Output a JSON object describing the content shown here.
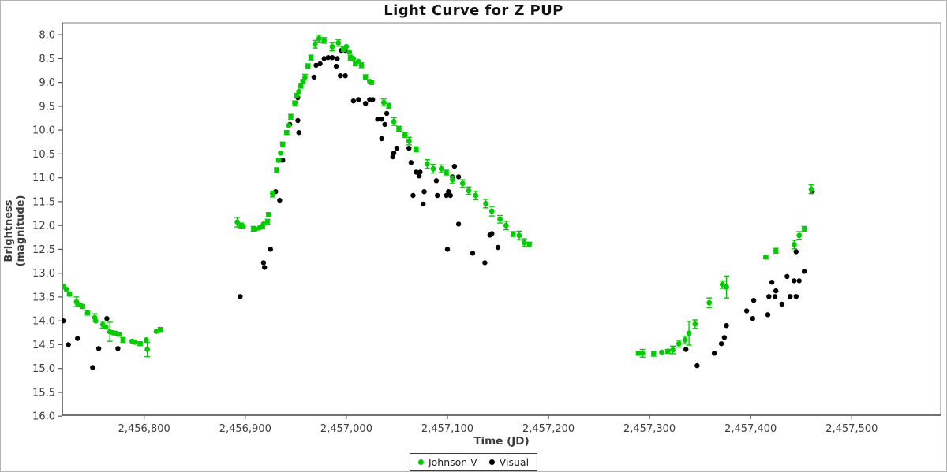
{
  "title": "Light Curve for Z PUP",
  "chart_data": {
    "type": "scatter",
    "title": "Light Curve for Z PUP",
    "xlabel": "Time (JD)",
    "ylabel": "Brightness (magnitude)",
    "grid": false,
    "legend_position": "bottom-center",
    "x_axis": {
      "label": "Time (JD)",
      "min": 2456719,
      "max": 2457588,
      "ticks": [
        2456800,
        2456900,
        2457000,
        2457100,
        2457200,
        2457300,
        2457400,
        2457500
      ],
      "tick_labels": [
        "2,456,800",
        "2,456,900",
        "2,457,000",
        "2,457,100",
        "2,457,200",
        "2,457,300",
        "2,457,400",
        "2,457,500"
      ]
    },
    "y_axis": {
      "label": "Brightness (magnitude)",
      "min": 7.75,
      "max": 15.98,
      "inverted_magnitude_scale": true,
      "ticks": [
        8.0,
        8.5,
        9.0,
        9.5,
        10.0,
        10.5,
        11.0,
        11.5,
        12.0,
        12.5,
        13.0,
        13.5,
        14.0,
        14.5,
        15.0,
        15.5,
        16.0
      ],
      "tick_labels": [
        "8.0",
        "8.5",
        "9.0",
        "9.5",
        "10.0",
        "10.5",
        "11.0",
        "11.5",
        "12.0",
        "12.5",
        "13.0",
        "13.5",
        "14.0",
        "14.5",
        "15.0",
        "15.5",
        "16.0"
      ]
    },
    "series": [
      {
        "name": "Johnson V",
        "color": "#00cc00",
        "marker": "circle",
        "marker_radius": 3.4,
        "error_bars": true,
        "points_format": [
          "jd",
          "magnitude",
          "error"
        ],
        "points": [
          [
            2456720,
            13.28,
            0.05
          ],
          [
            2456723,
            13.34,
            0
          ],
          [
            2456726,
            13.44,
            0.04
          ],
          [
            2456733,
            13.6,
            0.1
          ],
          [
            2456734,
            13.64,
            0
          ],
          [
            2456737,
            13.67,
            0
          ],
          [
            2456739,
            13.7,
            0.04
          ],
          [
            2456744,
            13.83,
            0.05
          ],
          [
            2456751,
            13.93,
            0.08
          ],
          [
            2456752,
            14.0,
            0
          ],
          [
            2456759,
            14.08,
            0.07
          ],
          [
            2456762,
            14.13,
            0
          ],
          [
            2456766,
            14.23,
            0.2
          ],
          [
            2456769,
            14.25,
            0
          ],
          [
            2456772,
            14.26,
            0
          ],
          [
            2456775,
            14.28,
            0.04
          ],
          [
            2456779,
            14.4,
            0.05
          ],
          [
            2456788,
            14.43,
            0
          ],
          [
            2456791,
            14.45,
            0
          ],
          [
            2456796,
            14.48,
            0.04
          ],
          [
            2456802,
            14.4,
            0
          ],
          [
            2456803,
            14.6,
            0.15
          ],
          [
            2456812,
            14.22,
            0
          ],
          [
            2456816,
            14.18,
            0.04
          ],
          [
            2456892,
            11.93,
            0.1
          ],
          [
            2456896,
            12.0,
            0.05
          ],
          [
            2456898,
            12.02,
            0
          ],
          [
            2456908,
            12.07,
            0.05
          ],
          [
            2456910,
            12.08,
            0
          ],
          [
            2456914,
            12.05,
            0
          ],
          [
            2456917,
            12.02,
            0.04
          ],
          [
            2456918,
            11.97,
            0
          ],
          [
            2456922,
            11.92,
            0.05
          ],
          [
            2456923,
            11.77,
            0.04
          ],
          [
            2456927,
            11.34,
            0.06
          ],
          [
            2456931,
            10.84,
            0.05
          ],
          [
            2456933,
            10.63,
            0.04
          ],
          [
            2456935,
            10.48,
            0
          ],
          [
            2456937,
            10.3,
            0.05
          ],
          [
            2456941,
            10.05,
            0.04
          ],
          [
            2456943,
            9.9,
            0
          ],
          [
            2456945,
            9.72,
            0.05
          ],
          [
            2456949,
            9.44,
            0.05
          ],
          [
            2456951,
            9.27,
            0.04
          ],
          [
            2456953,
            9.19,
            0
          ],
          [
            2456955,
            9.07,
            0.05
          ],
          [
            2456957,
            8.98,
            0.04
          ],
          [
            2456959,
            8.89,
            0.06
          ],
          [
            2456962,
            8.66,
            0.05
          ],
          [
            2456965,
            8.48,
            0.05
          ],
          [
            2456969,
            8.2,
            0.08
          ],
          [
            2456973,
            8.08,
            0.07
          ],
          [
            2456978,
            8.12,
            0.06
          ],
          [
            2456986,
            8.25,
            0.09
          ],
          [
            2456992,
            8.17,
            0.07
          ],
          [
            2456997,
            8.3,
            0.05
          ],
          [
            2457000,
            8.25,
            0
          ],
          [
            2457003,
            8.36,
            0
          ],
          [
            2457004,
            8.48,
            0.05
          ],
          [
            2457007,
            8.5,
            0
          ],
          [
            2457009,
            8.61,
            0.04
          ],
          [
            2457012,
            8.56,
            0
          ],
          [
            2457015,
            8.64,
            0.05
          ],
          [
            2457019,
            8.89,
            0.05
          ],
          [
            2457023,
            8.98,
            0
          ],
          [
            2457025,
            9.0,
            0.04
          ],
          [
            2457037,
            9.42,
            0.07
          ],
          [
            2457042,
            9.49,
            0.05
          ],
          [
            2457047,
            9.82,
            0.08
          ],
          [
            2457052,
            9.97,
            0.05
          ],
          [
            2457058,
            10.1,
            0.05
          ],
          [
            2457062,
            10.23,
            0.08
          ],
          [
            2457069,
            10.4,
            0.05
          ],
          [
            2457080,
            10.71,
            0.09
          ],
          [
            2457086,
            10.81,
            0.09
          ],
          [
            2457094,
            10.81,
            0.08
          ],
          [
            2457099,
            10.89,
            0.05
          ],
          [
            2457105,
            11.04,
            0.08
          ],
          [
            2457115,
            11.12,
            0.08
          ],
          [
            2457121,
            11.27,
            0.08
          ],
          [
            2457128,
            11.37,
            0.09
          ],
          [
            2457138,
            11.54,
            0.09
          ],
          [
            2457144,
            11.7,
            0.1
          ],
          [
            2457152,
            11.87,
            0.08
          ],
          [
            2457158,
            12.0,
            0.09
          ],
          [
            2457165,
            12.18,
            0.05
          ],
          [
            2457171,
            12.21,
            0.09
          ],
          [
            2457176,
            12.36,
            0.08
          ],
          [
            2457181,
            12.4,
            0.05
          ],
          [
            2457289,
            14.68,
            0.04
          ],
          [
            2457293,
            14.68,
            0.08
          ],
          [
            2457304,
            14.69,
            0.05
          ],
          [
            2457312,
            14.66,
            0
          ],
          [
            2457318,
            14.64,
            0.04
          ],
          [
            2457323,
            14.61,
            0.08
          ],
          [
            2457329,
            14.48,
            0.07
          ],
          [
            2457335,
            14.4,
            0.08
          ],
          [
            2457339,
            14.26,
            0.25
          ],
          [
            2457345,
            14.07,
            0.09
          ],
          [
            2457359,
            13.62,
            0.1
          ],
          [
            2457372,
            13.24,
            0.08
          ],
          [
            2457376,
            13.29,
            0.23
          ],
          [
            2457415,
            12.66,
            0.04
          ],
          [
            2457425,
            12.53,
            0.05
          ],
          [
            2457443,
            12.4,
            0.09
          ],
          [
            2457448,
            12.21,
            0.08
          ],
          [
            2457453,
            12.07,
            0.05
          ],
          [
            2457460,
            11.24,
            0.09
          ]
        ]
      },
      {
        "name": "Visual",
        "color": "#000000",
        "marker": "circle",
        "marker_radius": 3.2,
        "error_bars": false,
        "points_format": [
          "jd",
          "magnitude"
        ],
        "points": [
          [
            2456720,
            14.0
          ],
          [
            2456725,
            14.5
          ],
          [
            2456734,
            14.37
          ],
          [
            2456749,
            14.98
          ],
          [
            2456755,
            14.58
          ],
          [
            2456763,
            13.95
          ],
          [
            2456774,
            14.58
          ],
          [
            2456895,
            13.49
          ],
          [
            2456918,
            12.78
          ],
          [
            2456919,
            12.88
          ],
          [
            2456925,
            12.5
          ],
          [
            2456930,
            11.29
          ],
          [
            2456934,
            11.47
          ],
          [
            2456937,
            10.63
          ],
          [
            2456944,
            9.88
          ],
          [
            2456952,
            9.8
          ],
          [
            2456953,
            10.05
          ],
          [
            2456952,
            9.32
          ],
          [
            2456968,
            8.89
          ],
          [
            2456970,
            8.64
          ],
          [
            2456974,
            8.61
          ],
          [
            2456978,
            8.5
          ],
          [
            2456982,
            8.48
          ],
          [
            2456986,
            8.48
          ],
          [
            2456990,
            8.66
          ],
          [
            2456991,
            8.5
          ],
          [
            2456995,
            8.33
          ],
          [
            2456999,
            8.33
          ],
          [
            2456994,
            8.86
          ],
          [
            2456999,
            8.86
          ],
          [
            2457007,
            9.39
          ],
          [
            2457012,
            9.36
          ],
          [
            2457019,
            9.44
          ],
          [
            2457023,
            9.36
          ],
          [
            2457026,
            9.36
          ],
          [
            2457031,
            9.77
          ],
          [
            2457035,
            9.77
          ],
          [
            2457038,
            9.88
          ],
          [
            2457040,
            9.65
          ],
          [
            2457035,
            10.18
          ],
          [
            2457047,
            10.48
          ],
          [
            2457050,
            10.38
          ],
          [
            2457062,
            10.38
          ],
          [
            2457046,
            10.56
          ],
          [
            2457064,
            10.68
          ],
          [
            2457069,
            10.88
          ],
          [
            2457073,
            10.88
          ],
          [
            2457072,
            10.96
          ],
          [
            2457089,
            11.06
          ],
          [
            2457107,
            10.76
          ],
          [
            2457105,
            10.98
          ],
          [
            2457111,
            10.98
          ],
          [
            2457077,
            11.29
          ],
          [
            2457101,
            11.29
          ],
          [
            2457066,
            11.37
          ],
          [
            2457090,
            11.37
          ],
          [
            2457099,
            11.37
          ],
          [
            2457103,
            11.37
          ],
          [
            2457076,
            11.55
          ],
          [
            2457111,
            11.97
          ],
          [
            2457142,
            12.2
          ],
          [
            2457144,
            12.17
          ],
          [
            2457100,
            12.5
          ],
          [
            2457125,
            12.58
          ],
          [
            2457150,
            12.46
          ],
          [
            2457137,
            12.78
          ],
          [
            2457336,
            14.6
          ],
          [
            2457347,
            14.94
          ],
          [
            2457364,
            14.68
          ],
          [
            2457371,
            14.48
          ],
          [
            2457374,
            14.35
          ],
          [
            2457376,
            14.1
          ],
          [
            2457396,
            13.79
          ],
          [
            2457402,
            13.95
          ],
          [
            2457403,
            13.57
          ],
          [
            2457417,
            13.87
          ],
          [
            2457418,
            13.49
          ],
          [
            2457424,
            13.49
          ],
          [
            2457421,
            13.19
          ],
          [
            2457425,
            13.37
          ],
          [
            2457431,
            13.65
          ],
          [
            2457436,
            13.07
          ],
          [
            2457439,
            13.49
          ],
          [
            2457445,
            13.49
          ],
          [
            2457443,
            13.16
          ],
          [
            2457448,
            13.16
          ],
          [
            2457445,
            12.55
          ],
          [
            2457453,
            12.96
          ],
          [
            2457461,
            11.29
          ]
        ]
      }
    ]
  }
}
